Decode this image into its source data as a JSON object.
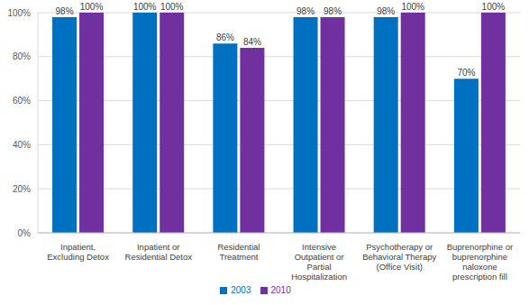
{
  "chart_data": {
    "type": "bar",
    "categories": [
      "Inpatient, Excluding Detox",
      "Inpatient or Residential Detox",
      "Residential Treatment",
      "Intensive Outpatient or Partial Hospitalization",
      "Psychotherapy or Behavioral Therapy (Office Visit)",
      "Buprenorphine or buprenorphine naloxone prescription fill"
    ],
    "series": [
      {
        "name": "2003",
        "color": "#0070c0",
        "values": [
          98,
          100,
          86,
          98,
          98,
          70
        ],
        "value_labels": [
          "98%",
          "100%",
          "86%",
          "98%",
          "98%",
          "70%"
        ]
      },
      {
        "name": "2010",
        "color": "#7030a0",
        "values": [
          100,
          100,
          84,
          98,
          100,
          100
        ],
        "value_labels": [
          "100%",
          "100%",
          "84%",
          "98%",
          "100%",
          "100%"
        ]
      }
    ],
    "ylim": [
      0,
      100
    ],
    "yticks": [
      {
        "value": 0,
        "label": "0%"
      },
      {
        "value": 20,
        "label": "20%"
      },
      {
        "value": 40,
        "label": "40%"
      },
      {
        "value": 60,
        "label": "60%"
      },
      {
        "value": 80,
        "label": "80%"
      },
      {
        "value": 100,
        "label": "100%"
      }
    ],
    "grid": true,
    "legend": "bottom",
    "data_labels": true
  }
}
